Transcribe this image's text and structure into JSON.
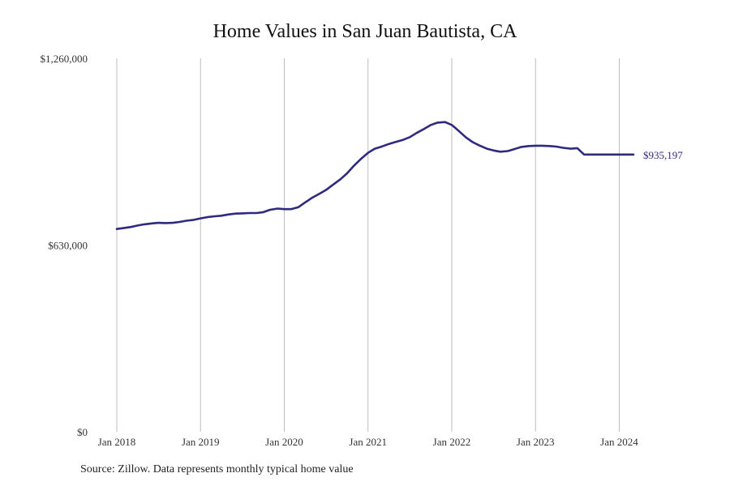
{
  "chart_data": {
    "type": "line",
    "title": "Home Values in San Juan Bautista, CA",
    "xlabel": "",
    "ylabel": "",
    "ylim": [
      0,
      1260000
    ],
    "yticks": [
      "$0",
      "$630,000",
      "$1,260,000"
    ],
    "ytick_values": [
      0,
      630000,
      1260000
    ],
    "xticks": [
      "Jan 2018",
      "Jan 2019",
      "Jan 2020",
      "Jan 2021",
      "Jan 2022",
      "Jan 2023",
      "Jan 2024"
    ],
    "xtick_values": [
      2018.0,
      2019.0,
      2020.0,
      2021.0,
      2022.0,
      2023.0,
      2024.0
    ],
    "xlim": [
      2018.0,
      2024.17
    ],
    "grid": "vertical",
    "line_color": "#2e2a7e",
    "end_label": "$935,197",
    "series": [
      {
        "x": [
          2018.0,
          2018.08,
          2018.17,
          2018.25,
          2018.33,
          2018.42,
          2018.5,
          2018.58,
          2018.67,
          2018.75,
          2018.83,
          2018.92,
          2019.0,
          2019.08,
          2019.17,
          2019.25,
          2019.33,
          2019.42,
          2019.5,
          2019.58,
          2019.67,
          2019.75,
          2019.83,
          2019.92,
          2020.0,
          2020.08,
          2020.17,
          2020.25,
          2020.33,
          2020.42,
          2020.5,
          2020.58,
          2020.67,
          2020.75,
          2020.83,
          2020.92,
          2021.0,
          2021.08,
          2021.17,
          2021.25,
          2021.33,
          2021.42,
          2021.5,
          2021.58,
          2021.67,
          2021.75,
          2021.83,
          2021.92,
          2022.0,
          2022.08,
          2022.17,
          2022.25,
          2022.33,
          2022.42,
          2022.5,
          2022.58,
          2022.67,
          2022.75,
          2022.83,
          2022.92,
          2023.0,
          2023.08,
          2023.17,
          2023.25,
          2023.33,
          2023.42,
          2023.5,
          2023.58,
          2023.67,
          2023.75,
          2023.83,
          2023.92,
          2024.0,
          2024.08,
          2024.17
        ],
        "values": [
          684000,
          687000,
          691000,
          696000,
          700000,
          703000,
          705000,
          704000,
          705000,
          708000,
          712000,
          715000,
          720000,
          724000,
          727000,
          729000,
          733000,
          736000,
          737000,
          738000,
          738000,
          741000,
          749000,
          753000,
          751000,
          751000,
          758000,
          774000,
          789000,
          803000,
          816000,
          833000,
          852000,
          872000,
          897000,
          922000,
          941000,
          955000,
          963000,
          971000,
          978000,
          985000,
          994000,
          1008000,
          1022000,
          1035000,
          1043000,
          1045000,
          1035000,
          1016000,
          993000,
          977000,
          966000,
          955000,
          949000,
          945000,
          947000,
          954000,
          961000,
          964000,
          965000,
          965000,
          964000,
          962000,
          958000,
          955000,
          957000,
          935197,
          935197,
          935197,
          935197,
          935197,
          935197,
          935197,
          935197
        ]
      }
    ]
  },
  "source": "Source: Zillow. Data represents monthly typical home value"
}
